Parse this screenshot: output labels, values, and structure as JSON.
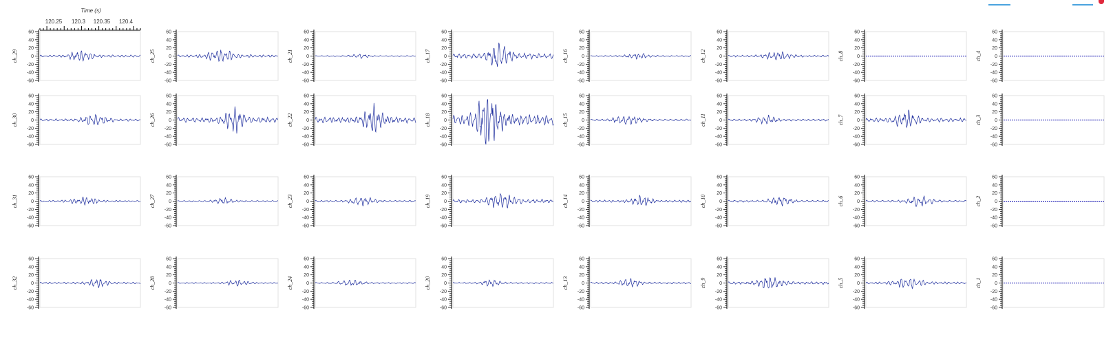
{
  "chart_data": {
    "type": "line",
    "top_axis": {
      "label": "Time (s)",
      "ticks": [
        "120.25",
        "120.3",
        "120.35",
        "120.4"
      ]
    },
    "y_ticks": [
      "60",
      "40",
      "20",
      "0",
      "-20",
      "-40",
      "-60"
    ],
    "ylim": [
      -60,
      60
    ],
    "grid": false,
    "line_color": "#1a2a9c",
    "flat_color": "#0000aa",
    "legend_colors": [
      "#4aa3df",
      "#4aa3df",
      "#e0283c"
    ],
    "panels": [
      {
        "channel": "ch_29",
        "amplitude": 12,
        "flat": false
      },
      {
        "channel": "ch_25",
        "amplitude": 14,
        "flat": false
      },
      {
        "channel": "ch_21",
        "amplitude": 5,
        "flat": false
      },
      {
        "channel": "ch_17",
        "amplitude": 28,
        "flat": false
      },
      {
        "channel": "ch_16",
        "amplitude": 6,
        "flat": false
      },
      {
        "channel": "ch_12",
        "amplitude": 9,
        "flat": false
      },
      {
        "channel": "ch_8",
        "amplitude": 0,
        "flat": true
      },
      {
        "channel": "ch_4",
        "amplitude": 0,
        "flat": true
      },
      {
        "channel": "ch_30",
        "amplitude": 12,
        "flat": false
      },
      {
        "channel": "ch_26",
        "amplitude": 28,
        "flat": false
      },
      {
        "channel": "ch_22",
        "amplitude": 30,
        "flat": false
      },
      {
        "channel": "ch_18",
        "amplitude": 55,
        "flat": false
      },
      {
        "channel": "ch_15",
        "amplitude": 10,
        "flat": false
      },
      {
        "channel": "ch_11",
        "amplitude": 10,
        "flat": false
      },
      {
        "channel": "ch_7",
        "amplitude": 20,
        "flat": false
      },
      {
        "channel": "ch_3",
        "amplitude": 0,
        "flat": true
      },
      {
        "channel": "ch_31",
        "amplitude": 8,
        "flat": false
      },
      {
        "channel": "ch_27",
        "amplitude": 7,
        "flat": false
      },
      {
        "channel": "ch_23",
        "amplitude": 9,
        "flat": false
      },
      {
        "channel": "ch_19",
        "amplitude": 18,
        "flat": false
      },
      {
        "channel": "ch_14",
        "amplitude": 12,
        "flat": false
      },
      {
        "channel": "ch_10",
        "amplitude": 10,
        "flat": false
      },
      {
        "channel": "ch_6",
        "amplitude": 10,
        "flat": false
      },
      {
        "channel": "ch_2",
        "amplitude": 0,
        "flat": true
      },
      {
        "channel": "ch_32",
        "amplitude": 9,
        "flat": false
      },
      {
        "channel": "ch_28",
        "amplitude": 6,
        "flat": false
      },
      {
        "channel": "ch_24",
        "amplitude": 6,
        "flat": false
      },
      {
        "channel": "ch_20",
        "amplitude": 7,
        "flat": false
      },
      {
        "channel": "ch_13",
        "amplitude": 9,
        "flat": false
      },
      {
        "channel": "ch_9",
        "amplitude": 14,
        "flat": false
      },
      {
        "channel": "ch_5",
        "amplitude": 11,
        "flat": false
      },
      {
        "channel": "ch_1",
        "amplitude": 0,
        "flat": true
      }
    ]
  }
}
